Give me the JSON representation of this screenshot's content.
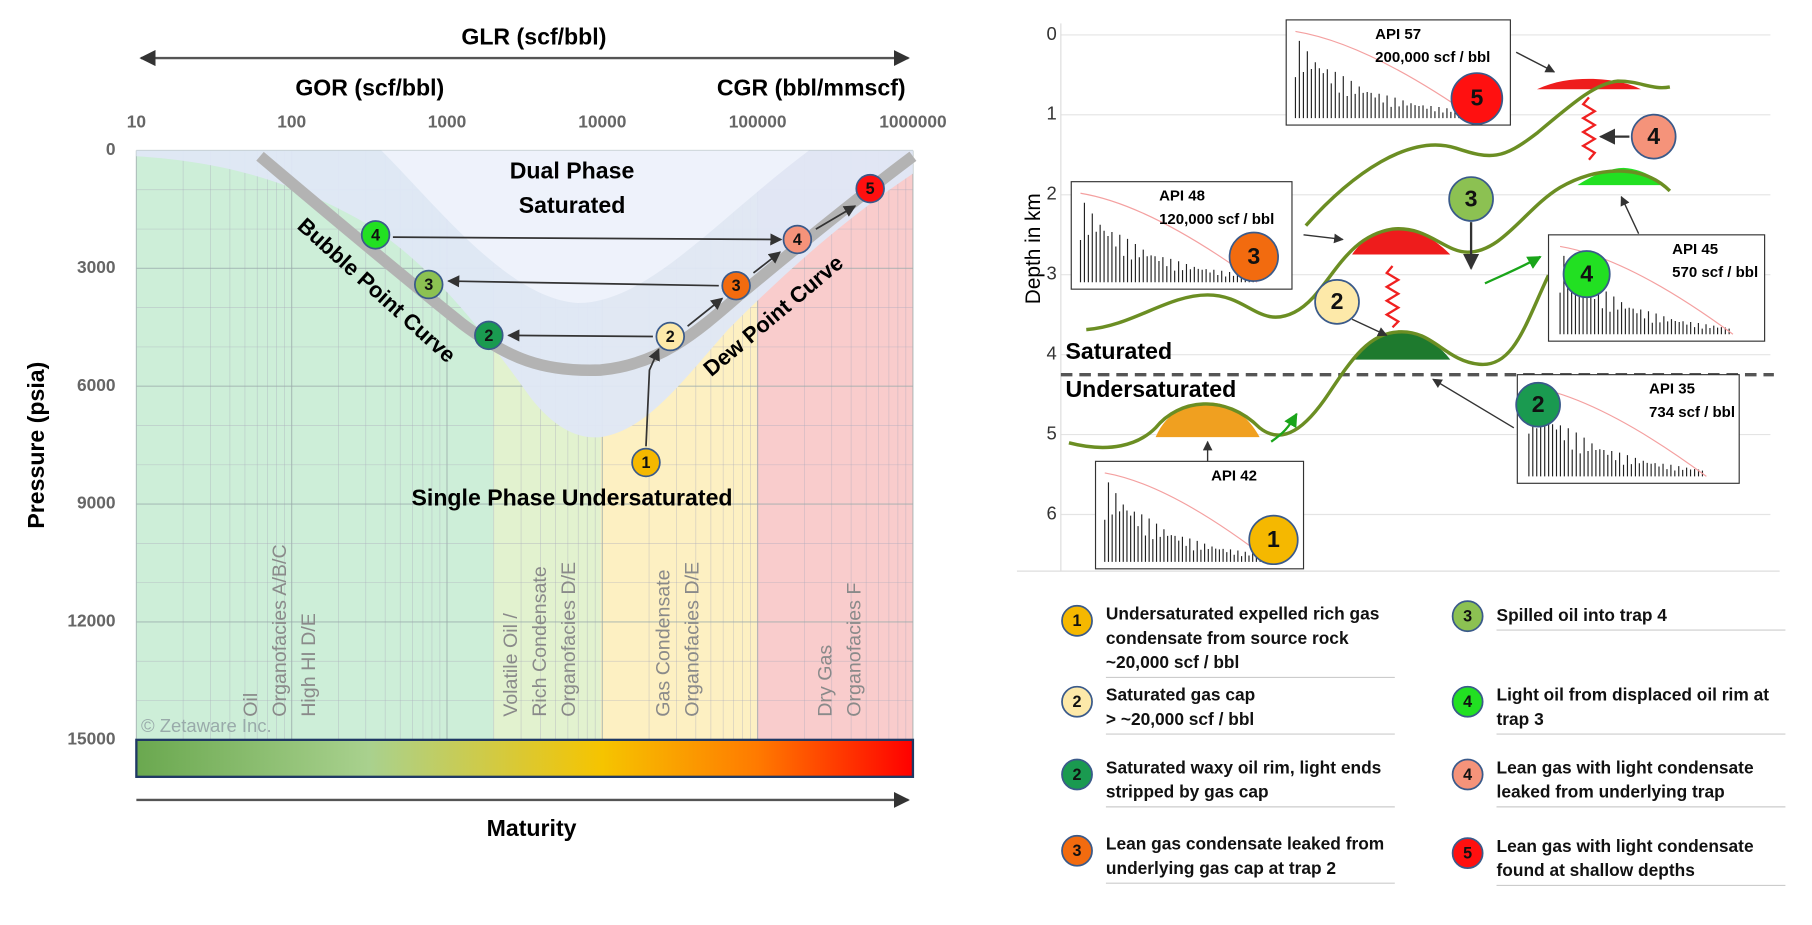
{
  "left_chart": {
    "glr_label": "GLR (scf/bbl)",
    "gor_label": "GOR (scf/bbl)",
    "cgr_label": "CGR (bbl/mmscf)",
    "x_ticks": [
      10,
      100,
      1000,
      10000,
      100000,
      1000000
    ],
    "y_ticks": [
      0,
      3000,
      6000,
      9000,
      12000,
      15000
    ],
    "y_axis_label": "Pressure (psia)",
    "x_axis_label": "Maturity",
    "dual_phase": [
      "Dual Phase",
      "Saturated"
    ],
    "bubble_point": "Bubble Point Curve",
    "dew_point": "Dew Point Curve",
    "single_phase": "Single Phase Undersaturated",
    "zones": [
      [
        "Oil",
        "Organofacies A/B/C",
        "High HI D/E"
      ],
      [
        "Volatile Oil /",
        "Rich Condensate",
        "Organofacies D/E"
      ],
      [
        "Gas Condensate",
        "Organofacies D/E"
      ],
      [
        "Dry Gas",
        "Organofacies F"
      ]
    ],
    "watermark": "© Zetaware Inc.",
    "markers": [
      "4",
      "3",
      "2",
      "1",
      "2",
      "3",
      "4",
      "5"
    ]
  },
  "right_diagram": {
    "y_axis_label": "Depth in km",
    "y_ticks": [
      0,
      1,
      2,
      3,
      4,
      5,
      6
    ],
    "saturated": "Saturated",
    "undersaturated": "Undersaturated",
    "insets": [
      {
        "api": "API 57",
        "gor": "200,000 scf / bbl",
        "marker": "5"
      },
      {
        "api": "API 48",
        "gor": "120,000 scf / bbl",
        "marker": "3"
      },
      {
        "api": "API 45",
        "gor": "570 scf / bbl",
        "marker": "4"
      },
      {
        "api": "API 35",
        "gor": "734 scf / bbl",
        "marker": "2"
      },
      {
        "api": "API 42",
        "marker": "1"
      }
    ],
    "markers": [
      "4",
      "3",
      "2"
    ]
  },
  "legend": [
    {
      "marker": "1",
      "lines": [
        "Undersaturated expelled rich gas",
        "condensate from source rock",
        "~20,000 scf / bbl"
      ]
    },
    {
      "marker": "3",
      "lines": [
        "Spilled oil into trap 4"
      ]
    },
    {
      "marker": "2",
      "lines": [
        "Saturated gas cap",
        "> ~20,000 scf / bbl"
      ]
    },
    {
      "marker": "4",
      "lines": [
        "Light oil from displaced oil rim at",
        "trap 3"
      ]
    },
    {
      "marker": "2",
      "lines": [
        "Saturated waxy oil rim, light ends",
        "stripped by gas cap"
      ]
    },
    {
      "marker": "4",
      "lines": [
        "Lean gas with light condensate",
        "leaked from underlying trap"
      ]
    },
    {
      "marker": "3",
      "lines": [
        "Lean gas condensate leaked from",
        "underlying gas cap at trap 2"
      ]
    },
    {
      "marker": "5",
      "lines": [
        "Lean gas with light condensate",
        "found at shallow depths"
      ]
    }
  ]
}
